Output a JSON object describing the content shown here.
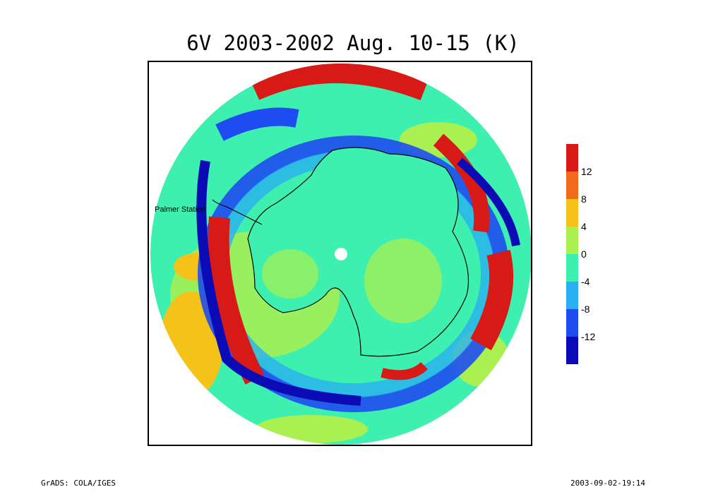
{
  "title": "6V 2003-2002 Aug. 10-15 (K)",
  "map": {
    "station_label": "Palmer Station",
    "colors": {
      "below_-12": "#0b0bb5",
      "-12_to_-8": "#1f4cf0",
      "-8_to_-4": "#29b0f0",
      "-4_to_0": "#3ef0b0",
      "0_to_4": "#a9f050",
      "4_to_8": "#f5c21a",
      "8_to_12": "#f26a1b",
      "above_12": "#d71a16"
    }
  },
  "colorbar": {
    "labels": [
      "12",
      "8",
      "4",
      "0",
      "-4",
      "-8",
      "-12"
    ],
    "colors": [
      "#d71a16",
      "#f26a1b",
      "#f5c21a",
      "#a9f050",
      "#3ef0b0",
      "#29b0f0",
      "#1f4cf0",
      "#0b0bb5"
    ]
  },
  "footer": {
    "left": "GrADS: COLA/IGES",
    "right": "2003-09-02-19:14"
  }
}
